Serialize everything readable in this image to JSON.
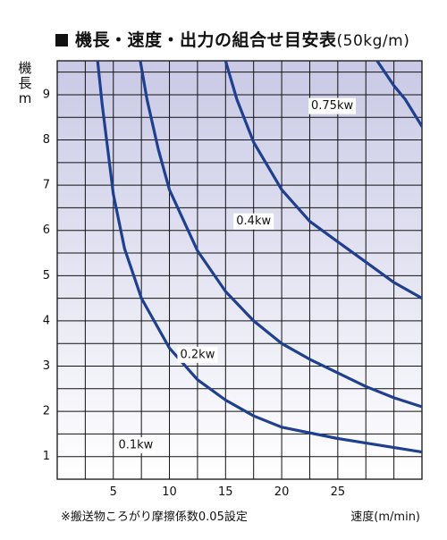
{
  "title": "■ 機長・速度・出力の組合せ目安表",
  "title_text": "機長・速度・出力の組合せ目安表",
  "title_unit": "(50kg/m)",
  "ylabel_chars": [
    "機",
    "長",
    "m"
  ],
  "xlabel": "速度(m/min)",
  "footnote": "※搬送物ころがり摩擦係数0.05設定",
  "colors": {
    "curve": "#1f3f8f",
    "grid": "#111111",
    "bg_top": "#c9c9e6",
    "bg_bottom": "#ffffff"
  },
  "chart_data": {
    "type": "line",
    "title": "機長・速度・出力の組合せ目安表(50kg/m)",
    "xlabel": "速度(m/min)",
    "ylabel": "機長 m",
    "xlim": [
      0,
      32.5
    ],
    "ylim": [
      0.5,
      9.75
    ],
    "x_ticks": [
      5,
      10,
      15,
      20,
      25
    ],
    "y_ticks": [
      1,
      2,
      3,
      4,
      5,
      6,
      7,
      8,
      9
    ],
    "grid": true,
    "series": [
      {
        "name": "0.1kw",
        "x": [
          3.6,
          4.0,
          5.0,
          6.0,
          7.5,
          10.0,
          12.5,
          15.0,
          17.5,
          20.0,
          25.0,
          32.5
        ],
        "y": [
          9.75,
          8.8,
          6.8,
          5.6,
          4.5,
          3.4,
          2.7,
          2.25,
          1.9,
          1.65,
          1.4,
          1.1
        ]
      },
      {
        "name": "0.2kw",
        "x": [
          7.4,
          8.0,
          9.0,
          10.0,
          12.5,
          15.0,
          17.5,
          20.0,
          22.5,
          25.0,
          27.5,
          30.0,
          32.5
        ],
        "y": [
          9.75,
          8.9,
          7.8,
          6.9,
          5.55,
          4.65,
          4.0,
          3.5,
          3.15,
          2.85,
          2.55,
          2.3,
          2.1
        ]
      },
      {
        "name": "0.4kw",
        "x": [
          15.0,
          16.0,
          17.5,
          20.0,
          22.5,
          25.0,
          27.5,
          30.0,
          32.5
        ],
        "y": [
          9.75,
          8.9,
          7.95,
          6.9,
          6.2,
          5.75,
          5.3,
          4.85,
          4.5
        ]
      },
      {
        "name": "0.75kw",
        "x": [
          28.5,
          30.0,
          31.0,
          32.5
        ],
        "y": [
          9.75,
          9.2,
          8.9,
          8.3
        ]
      }
    ],
    "annotations": [
      {
        "text": "0.75kw",
        "x": 24.5,
        "y": 8.75
      },
      {
        "text": "0.4kw",
        "x": 17.5,
        "y": 6.2
      },
      {
        "text": "0.2kw",
        "x": 12.5,
        "y": 3.25
      },
      {
        "text": "0.1kw",
        "x": 7.0,
        "y": 1.25
      }
    ]
  }
}
